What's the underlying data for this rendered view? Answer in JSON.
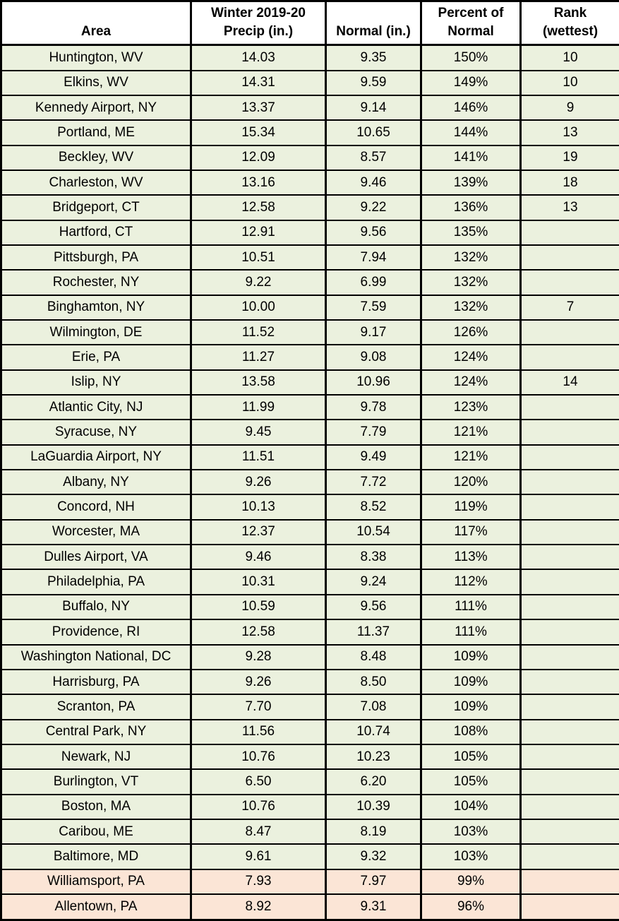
{
  "colors": {
    "row_green": "#EBF1DE",
    "row_below_normal_peach": "#FBE5D6",
    "header_bg": "#FFFFFF",
    "border": "#000000",
    "text": "#000000"
  },
  "chart_data": {
    "type": "table",
    "columns": [
      {
        "key": "area",
        "lines": [
          "Area"
        ]
      },
      {
        "key": "precip",
        "lines": [
          "Winter 2019-20",
          "Precip (in.)"
        ]
      },
      {
        "key": "normal",
        "lines": [
          "Normal (in.)"
        ]
      },
      {
        "key": "percent",
        "lines": [
          "Percent of",
          "Normal"
        ]
      },
      {
        "key": "rank",
        "lines": [
          "Rank",
          "(wettest)"
        ]
      }
    ],
    "rows": [
      {
        "area": "Huntington, WV",
        "precip": "14.03",
        "normal": "9.35",
        "percent": "150%",
        "rank": "10",
        "below_normal": false
      },
      {
        "area": "Elkins, WV",
        "precip": "14.31",
        "normal": "9.59",
        "percent": "149%",
        "rank": "10",
        "below_normal": false
      },
      {
        "area": "Kennedy Airport, NY",
        "precip": "13.37",
        "normal": "9.14",
        "percent": "146%",
        "rank": "9",
        "below_normal": false
      },
      {
        "area": "Portland, ME",
        "precip": "15.34",
        "normal": "10.65",
        "percent": "144%",
        "rank": "13",
        "below_normal": false
      },
      {
        "area": "Beckley, WV",
        "precip": "12.09",
        "normal": "8.57",
        "percent": "141%",
        "rank": "19",
        "below_normal": false
      },
      {
        "area": "Charleston, WV",
        "precip": "13.16",
        "normal": "9.46",
        "percent": "139%",
        "rank": "18",
        "below_normal": false
      },
      {
        "area": "Bridgeport, CT",
        "precip": "12.58",
        "normal": "9.22",
        "percent": "136%",
        "rank": "13",
        "below_normal": false
      },
      {
        "area": "Hartford, CT",
        "precip": "12.91",
        "normal": "9.56",
        "percent": "135%",
        "rank": "",
        "below_normal": false
      },
      {
        "area": "Pittsburgh, PA",
        "precip": "10.51",
        "normal": "7.94",
        "percent": "132%",
        "rank": "",
        "below_normal": false
      },
      {
        "area": "Rochester, NY",
        "precip": "9.22",
        "normal": "6.99",
        "percent": "132%",
        "rank": "",
        "below_normal": false
      },
      {
        "area": "Binghamton, NY",
        "precip": "10.00",
        "normal": "7.59",
        "percent": "132%",
        "rank": "7",
        "below_normal": false
      },
      {
        "area": "Wilmington, DE",
        "precip": "11.52",
        "normal": "9.17",
        "percent": "126%",
        "rank": "",
        "below_normal": false
      },
      {
        "area": "Erie, PA",
        "precip": "11.27",
        "normal": "9.08",
        "percent": "124%",
        "rank": "",
        "below_normal": false
      },
      {
        "area": "Islip, NY",
        "precip": "13.58",
        "normal": "10.96",
        "percent": "124%",
        "rank": "14",
        "below_normal": false
      },
      {
        "area": "Atlantic City, NJ",
        "precip": "11.99",
        "normal": "9.78",
        "percent": "123%",
        "rank": "",
        "below_normal": false
      },
      {
        "area": "Syracuse, NY",
        "precip": "9.45",
        "normal": "7.79",
        "percent": "121%",
        "rank": "",
        "below_normal": false
      },
      {
        "area": "LaGuardia Airport, NY",
        "precip": "11.51",
        "normal": "9.49",
        "percent": "121%",
        "rank": "",
        "below_normal": false
      },
      {
        "area": "Albany, NY",
        "precip": "9.26",
        "normal": "7.72",
        "percent": "120%",
        "rank": "",
        "below_normal": false
      },
      {
        "area": "Concord, NH",
        "precip": "10.13",
        "normal": "8.52",
        "percent": "119%",
        "rank": "",
        "below_normal": false
      },
      {
        "area": "Worcester, MA",
        "precip": "12.37",
        "normal": "10.54",
        "percent": "117%",
        "rank": "",
        "below_normal": false
      },
      {
        "area": "Dulles Airport, VA",
        "precip": "9.46",
        "normal": "8.38",
        "percent": "113%",
        "rank": "",
        "below_normal": false
      },
      {
        "area": "Philadelphia, PA",
        "precip": "10.31",
        "normal": "9.24",
        "percent": "112%",
        "rank": "",
        "below_normal": false
      },
      {
        "area": "Buffalo, NY",
        "precip": "10.59",
        "normal": "9.56",
        "percent": "111%",
        "rank": "",
        "below_normal": false
      },
      {
        "area": "Providence, RI",
        "precip": "12.58",
        "normal": "11.37",
        "percent": "111%",
        "rank": "",
        "below_normal": false
      },
      {
        "area": "Washington National, DC",
        "precip": "9.28",
        "normal": "8.48",
        "percent": "109%",
        "rank": "",
        "below_normal": false
      },
      {
        "area": "Harrisburg, PA",
        "precip": "9.26",
        "normal": "8.50",
        "percent": "109%",
        "rank": "",
        "below_normal": false
      },
      {
        "area": "Scranton, PA",
        "precip": "7.70",
        "normal": "7.08",
        "percent": "109%",
        "rank": "",
        "below_normal": false
      },
      {
        "area": "Central Park, NY",
        "precip": "11.56",
        "normal": "10.74",
        "percent": "108%",
        "rank": "",
        "below_normal": false
      },
      {
        "area": "Newark, NJ",
        "precip": "10.76",
        "normal": "10.23",
        "percent": "105%",
        "rank": "",
        "below_normal": false
      },
      {
        "area": "Burlington, VT",
        "precip": "6.50",
        "normal": "6.20",
        "percent": "105%",
        "rank": "",
        "below_normal": false
      },
      {
        "area": "Boston, MA",
        "precip": "10.76",
        "normal": "10.39",
        "percent": "104%",
        "rank": "",
        "below_normal": false
      },
      {
        "area": "Caribou, ME",
        "precip": "8.47",
        "normal": "8.19",
        "percent": "103%",
        "rank": "",
        "below_normal": false
      },
      {
        "area": "Baltimore, MD",
        "precip": "9.61",
        "normal": "9.32",
        "percent": "103%",
        "rank": "",
        "below_normal": false
      },
      {
        "area": "Williamsport, PA",
        "precip": "7.93",
        "normal": "7.97",
        "percent": "99%",
        "rank": "",
        "below_normal": true
      },
      {
        "area": "Allentown, PA",
        "precip": "8.92",
        "normal": "9.31",
        "percent": "96%",
        "rank": "",
        "below_normal": true
      }
    ]
  }
}
